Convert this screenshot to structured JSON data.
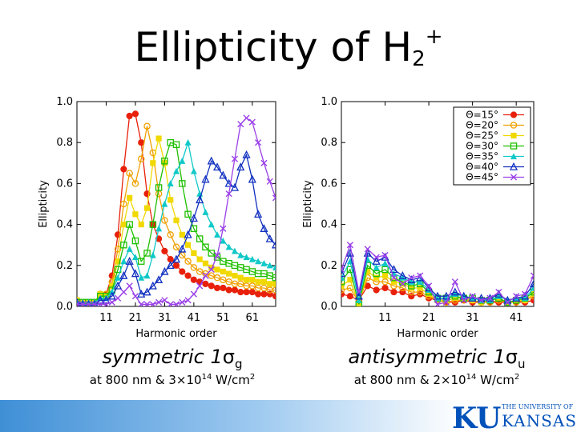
{
  "title": {
    "main": "Ellipticity of H",
    "sub": "2",
    "sup": "+"
  },
  "captions": {
    "left": {
      "main": "symmetric 1",
      "sym": "σ",
      "sub": "g",
      "detail_pre": "at 800 nm & 3×10",
      "detail_exp": "14",
      "detail_post": " W/cm",
      "detail_unit_exp": "2"
    },
    "right": {
      "main": "antisymmetric 1",
      "sym": "σ",
      "sub": "u",
      "detail_pre": "at 800 nm & 2×10",
      "detail_exp": "14",
      "detail_post": " W/cm",
      "detail_unit_exp": "2"
    }
  },
  "logo": {
    "letters": "KU",
    "top": "THE UNIVERSITY OF",
    "bottom": "KANSAS",
    "colors": {
      "blue": "#0051ba",
      "red": "#e8000d"
    }
  },
  "chart_data": [
    {
      "type": "line",
      "xlabel": "Harmonic order",
      "ylabel": "Ellipticity",
      "xlim": [
        1,
        69
      ],
      "ylim": [
        0,
        1.0
      ],
      "xticks": [
        11,
        21,
        31,
        41,
        51,
        61
      ],
      "yticks": [
        "0.0",
        "0.2",
        "0.4",
        "0.6",
        "0.8",
        "1.0"
      ],
      "x": [
        1,
        3,
        5,
        7,
        9,
        11,
        13,
        15,
        17,
        19,
        21,
        23,
        25,
        27,
        29,
        31,
        33,
        35,
        37,
        39,
        41,
        43,
        45,
        47,
        49,
        51,
        53,
        55,
        57,
        59,
        61,
        63,
        65,
        67,
        69
      ],
      "series": [
        {
          "name": "Θ=15°",
          "color": "#e8200a",
          "marker": "circle-filled",
          "values": [
            0.03,
            0.02,
            0.02,
            0.02,
            0.06,
            0.06,
            0.15,
            0.35,
            0.67,
            0.93,
            0.94,
            0.8,
            0.55,
            0.4,
            0.33,
            0.27,
            0.23,
            0.2,
            0.17,
            0.15,
            0.13,
            0.12,
            0.11,
            0.1,
            0.09,
            0.09,
            0.08,
            0.08,
            0.07,
            0.07,
            0.07,
            0.06,
            0.06,
            0.06,
            0.05
          ]
        },
        {
          "name": "Θ=20°",
          "color": "#f0a000",
          "marker": "circle-open",
          "values": [
            0.03,
            0.02,
            0.02,
            0.02,
            0.06,
            0.06,
            0.12,
            0.28,
            0.5,
            0.65,
            0.6,
            0.72,
            0.88,
            0.75,
            0.55,
            0.42,
            0.35,
            0.29,
            0.25,
            0.22,
            0.19,
            0.17,
            0.16,
            0.15,
            0.14,
            0.13,
            0.12,
            0.11,
            0.11,
            0.1,
            0.1,
            0.09,
            0.09,
            0.08,
            0.08
          ]
        },
        {
          "name": "Θ=25°",
          "color": "#f0d800",
          "marker": "square-filled",
          "values": [
            0.03,
            0.02,
            0.02,
            0.02,
            0.06,
            0.05,
            0.1,
            0.22,
            0.4,
            0.53,
            0.45,
            0.4,
            0.48,
            0.7,
            0.82,
            0.7,
            0.52,
            0.42,
            0.35,
            0.3,
            0.26,
            0.23,
            0.21,
            0.19,
            0.18,
            0.17,
            0.16,
            0.15,
            0.14,
            0.13,
            0.13,
            0.12,
            0.12,
            0.11,
            0.11
          ]
        },
        {
          "name": "Θ=30°",
          "color": "#1ec000",
          "marker": "square-open",
          "values": [
            0.02,
            0.02,
            0.02,
            0.02,
            0.05,
            0.05,
            0.08,
            0.18,
            0.3,
            0.4,
            0.32,
            0.22,
            0.26,
            0.4,
            0.58,
            0.71,
            0.8,
            0.79,
            0.6,
            0.45,
            0.38,
            0.33,
            0.29,
            0.26,
            0.24,
            0.22,
            0.21,
            0.2,
            0.19,
            0.18,
            0.17,
            0.16,
            0.16,
            0.15,
            0.14
          ]
        },
        {
          "name": "Θ=35°",
          "color": "#10c8c8",
          "marker": "triangle-filled",
          "values": [
            0.02,
            0.02,
            0.02,
            0.02,
            0.04,
            0.04,
            0.07,
            0.14,
            0.22,
            0.28,
            0.24,
            0.14,
            0.15,
            0.25,
            0.38,
            0.5,
            0.6,
            0.66,
            0.71,
            0.8,
            0.66,
            0.55,
            0.46,
            0.4,
            0.35,
            0.32,
            0.29,
            0.27,
            0.25,
            0.24,
            0.23,
            0.22,
            0.21,
            0.2,
            0.19
          ]
        },
        {
          "name": "Θ=40°",
          "color": "#1030c0",
          "marker": "triangle-open",
          "values": [
            0.02,
            0.01,
            0.01,
            0.01,
            0.03,
            0.03,
            0.05,
            0.1,
            0.15,
            0.22,
            0.16,
            0.06,
            0.07,
            0.1,
            0.13,
            0.17,
            0.2,
            0.23,
            0.28,
            0.35,
            0.43,
            0.52,
            0.62,
            0.71,
            0.68,
            0.64,
            0.6,
            0.58,
            0.68,
            0.74,
            0.62,
            0.45,
            0.38,
            0.33,
            0.3
          ]
        },
        {
          "name": "Θ=45°",
          "color": "#9a40e8",
          "marker": "cross",
          "values": [
            0.01,
            0.01,
            0.01,
            0.01,
            0.01,
            0.01,
            0.02,
            0.04,
            0.07,
            0.1,
            0.05,
            0.01,
            0.01,
            0.01,
            0.02,
            0.03,
            0.01,
            0.01,
            0.02,
            0.03,
            0.06,
            0.1,
            0.15,
            0.18,
            0.25,
            0.38,
            0.55,
            0.72,
            0.89,
            0.92,
            0.9,
            0.8,
            0.7,
            0.61,
            0.53
          ]
        }
      ]
    },
    {
      "type": "line",
      "xlabel": "Harmonic order",
      "ylabel": "Ellipticity",
      "xlim": [
        1,
        45
      ],
      "ylim": [
        0,
        1.0
      ],
      "xticks": [
        11,
        21,
        31,
        41
      ],
      "yticks": [
        "0.0",
        "0.2",
        "0.4",
        "0.6",
        "0.8",
        "1.0"
      ],
      "legend": "top-right",
      "x": [
        1,
        3,
        5,
        7,
        9,
        11,
        13,
        15,
        17,
        19,
        21,
        23,
        25,
        27,
        29,
        31,
        33,
        35,
        37,
        39,
        41,
        43,
        45
      ],
      "series": [
        {
          "name": "Θ=15°",
          "color": "#e8200a",
          "marker": "circle-filled",
          "values": [
            0.06,
            0.05,
            0.03,
            0.1,
            0.08,
            0.09,
            0.07,
            0.07,
            0.05,
            0.06,
            0.04,
            0.03,
            0.02,
            0.02,
            0.03,
            0.02,
            0.02,
            0.02,
            0.02,
            0.02,
            0.02,
            0.02,
            0.03
          ]
        },
        {
          "name": "Θ=20°",
          "color": "#f0a000",
          "marker": "circle-open",
          "values": [
            0.08,
            0.09,
            0.02,
            0.14,
            0.12,
            0.12,
            0.1,
            0.09,
            0.07,
            0.07,
            0.05,
            0.03,
            0.02,
            0.03,
            0.03,
            0.03,
            0.02,
            0.02,
            0.03,
            0.02,
            0.02,
            0.03,
            0.05
          ]
        },
        {
          "name": "Θ=25°",
          "color": "#f0d800",
          "marker": "square-filled",
          "values": [
            0.1,
            0.13,
            0.01,
            0.17,
            0.14,
            0.15,
            0.12,
            0.11,
            0.09,
            0.09,
            0.06,
            0.03,
            0.03,
            0.04,
            0.04,
            0.03,
            0.02,
            0.03,
            0.04,
            0.02,
            0.03,
            0.03,
            0.06
          ]
        },
        {
          "name": "Θ=30°",
          "color": "#1ec000",
          "marker": "square-open",
          "values": [
            0.12,
            0.18,
            0.01,
            0.2,
            0.16,
            0.18,
            0.14,
            0.12,
            0.1,
            0.11,
            0.07,
            0.04,
            0.04,
            0.05,
            0.04,
            0.04,
            0.03,
            0.03,
            0.04,
            0.02,
            0.03,
            0.04,
            0.07
          ]
        },
        {
          "name": "Θ=35°",
          "color": "#10c8c8",
          "marker": "triangle-filled",
          "values": [
            0.14,
            0.22,
            0.03,
            0.23,
            0.19,
            0.21,
            0.16,
            0.14,
            0.12,
            0.12,
            0.08,
            0.04,
            0.04,
            0.06,
            0.05,
            0.04,
            0.03,
            0.03,
            0.05,
            0.03,
            0.04,
            0.04,
            0.09
          ]
        },
        {
          "name": "Θ=40°",
          "color": "#1030c0",
          "marker": "triangle-open",
          "values": [
            0.16,
            0.26,
            0.05,
            0.26,
            0.22,
            0.24,
            0.18,
            0.15,
            0.13,
            0.14,
            0.09,
            0.05,
            0.05,
            0.07,
            0.05,
            0.04,
            0.04,
            0.04,
            0.06,
            0.03,
            0.04,
            0.05,
            0.11
          ]
        },
        {
          "name": "Θ=45°",
          "color": "#9a40e8",
          "marker": "cross",
          "values": [
            0.18,
            0.3,
            0.07,
            0.28,
            0.24,
            0.25,
            0.14,
            0.11,
            0.14,
            0.15,
            0.1,
            0.01,
            0.02,
            0.12,
            0.03,
            0.05,
            0.03,
            0.04,
            0.07,
            0.02,
            0.05,
            0.06,
            0.15
          ]
        }
      ]
    }
  ]
}
